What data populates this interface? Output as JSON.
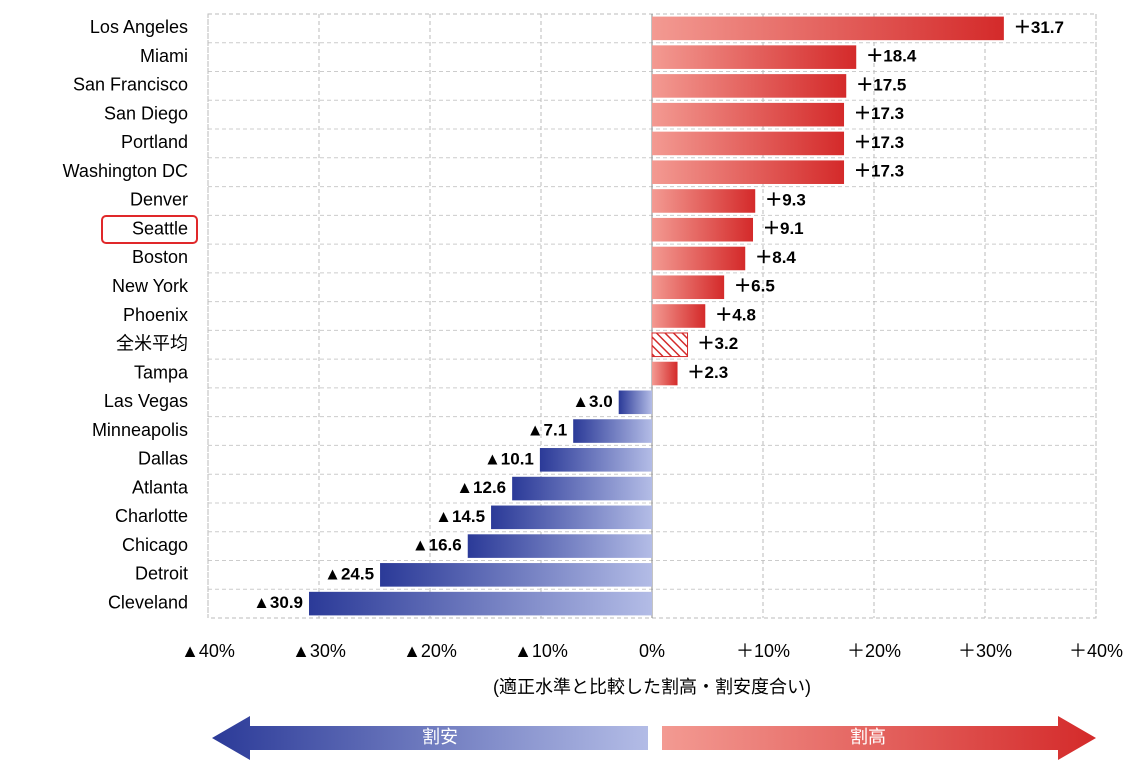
{
  "chart_data": {
    "type": "hbar",
    "categories": [
      "Los Angeles",
      "Miami",
      "San Francisco",
      "San Diego",
      "Portland",
      "Washington DC",
      "Denver",
      "Seattle",
      "Boston",
      "New York",
      "Phoenix",
      "全米平均",
      "Tampa",
      "Las Vegas",
      "Minneapolis",
      "Dallas",
      "Atlanta",
      "Charlotte",
      "Chicago",
      "Detroit",
      "Cleveland"
    ],
    "values": [
      31.7,
      18.4,
      17.5,
      17.3,
      17.3,
      17.3,
      9.3,
      9.1,
      8.4,
      6.5,
      4.8,
      3.2,
      2.3,
      -3.0,
      -7.1,
      -10.1,
      -12.6,
      -14.5,
      -16.6,
      -24.5,
      -30.9
    ],
    "value_labels": [
      "＋31.7",
      "＋18.4",
      "＋17.5",
      "＋17.3",
      "＋17.3",
      "＋17.3",
      "＋9.3",
      "＋9.1",
      "＋8.4",
      "＋6.5",
      "＋4.8",
      "＋3.2",
      "＋2.3",
      "▲3.0",
      "▲7.1",
      "▲10.1",
      "▲12.6",
      "▲14.5",
      "▲16.6",
      "▲24.5",
      "▲30.9"
    ],
    "positive_color": "#d42a2a",
    "negative_color": "#2e3f9c",
    "hatched_indices": [
      11
    ],
    "xlim": [
      -40,
      40
    ],
    "xticks": [
      {
        "value": -40,
        "label": "▲40%"
      },
      {
        "value": -30,
        "label": "▲30%"
      },
      {
        "value": -20,
        "label": "▲20%"
      },
      {
        "value": -10,
        "label": "▲10%"
      },
      {
        "value": 0,
        "label": "0%"
      },
      {
        "value": 10,
        "label": "＋10%"
      },
      {
        "value": 20,
        "label": "＋20%"
      },
      {
        "value": 30,
        "label": "＋30%"
      },
      {
        "value": 40,
        "label": "＋40%"
      }
    ],
    "grid": true,
    "x_label": "(適正水準と比較した割高・割安度合い)",
    "arrows": {
      "left": "割安",
      "right": "割高"
    }
  }
}
